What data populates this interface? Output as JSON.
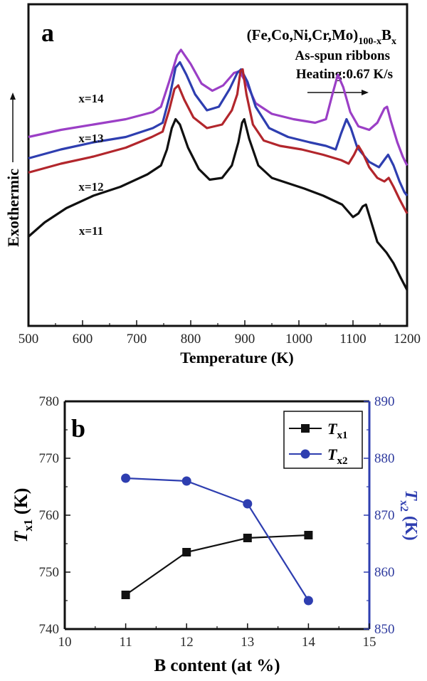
{
  "chart_data": [
    {
      "type": "line",
      "panel_label": "a",
      "xlabel": "Temperature (K)",
      "ylabel": "Exothermic",
      "xlim": [
        500,
        1200
      ],
      "x_ticks": [
        "500",
        "600",
        "700",
        "800",
        "900",
        "1000",
        "1100",
        "1200"
      ],
      "annotation": {
        "composition_main": "(Fe,Co,Ni,Cr,Mo)",
        "composition_sub": "100-x",
        "composition_end": "B",
        "composition_end_sub": "x",
        "line2": "As-spun ribbons",
        "line3": "Heating:0.67 K/s"
      },
      "series": [
        {
          "name": "x=14",
          "color": "#9b3fc6",
          "points": [
            [
              500,
              43
            ],
            [
              560,
              47
            ],
            [
              620,
              50
            ],
            [
              680,
              53
            ],
            [
              730,
              57
            ],
            [
              745,
              60
            ],
            [
              760,
              74
            ],
            [
              775,
              89
            ],
            [
              782,
              92
            ],
            [
              800,
              84
            ],
            [
              820,
              73
            ],
            [
              840,
              69
            ],
            [
              860,
              72
            ],
            [
              880,
              79
            ],
            [
              890,
              80
            ],
            [
              905,
              72
            ],
            [
              920,
              62
            ],
            [
              950,
              56
            ],
            [
              990,
              53
            ],
            [
              1030,
              51
            ],
            [
              1050,
              53
            ],
            [
              1062,
              67
            ],
            [
              1072,
              78
            ],
            [
              1082,
              71
            ],
            [
              1095,
              57
            ],
            [
              1110,
              49
            ],
            [
              1130,
              47
            ],
            [
              1145,
              51
            ],
            [
              1158,
              59
            ],
            [
              1163,
              60
            ],
            [
              1170,
              52
            ],
            [
              1182,
              40
            ],
            [
              1192,
              32
            ],
            [
              1200,
              27
            ]
          ]
        },
        {
          "name": "x=13",
          "color": "#2e3eb0",
          "points": [
            [
              500,
              31
            ],
            [
              560,
              36
            ],
            [
              620,
              40
            ],
            [
              680,
              43
            ],
            [
              730,
              48
            ],
            [
              748,
              51
            ],
            [
              762,
              67
            ],
            [
              772,
              82
            ],
            [
              780,
              85
            ],
            [
              792,
              78
            ],
            [
              808,
              67
            ],
            [
              830,
              58
            ],
            [
              852,
              60
            ],
            [
              872,
              70
            ],
            [
              886,
              79
            ],
            [
              893,
              81
            ],
            [
              905,
              74
            ],
            [
              920,
              60
            ],
            [
              945,
              48
            ],
            [
              980,
              43
            ],
            [
              1020,
              40
            ],
            [
              1050,
              38
            ],
            [
              1068,
              36
            ],
            [
              1078,
              45
            ],
            [
              1088,
              53
            ],
            [
              1096,
              48
            ],
            [
              1108,
              37
            ],
            [
              1130,
              29
            ],
            [
              1148,
              26
            ],
            [
              1160,
              31
            ],
            [
              1165,
              33
            ],
            [
              1175,
              27
            ],
            [
              1186,
              18
            ],
            [
              1195,
              12
            ],
            [
              1200,
              10
            ]
          ]
        },
        {
          "name": "x=12",
          "color": "#b2262c",
          "points": [
            [
              500,
              23
            ],
            [
              560,
              28
            ],
            [
              620,
              32
            ],
            [
              680,
              37
            ],
            [
              728,
              43
            ],
            [
              748,
              46
            ],
            [
              760,
              58
            ],
            [
              770,
              70
            ],
            [
              777,
              72
            ],
            [
              788,
              64
            ],
            [
              805,
              54
            ],
            [
              830,
              48
            ],
            [
              858,
              50
            ],
            [
              876,
              58
            ],
            [
              886,
              67
            ],
            [
              892,
              80
            ],
            [
              896,
              81
            ],
            [
              903,
              67
            ],
            [
              915,
              50
            ],
            [
              935,
              41
            ],
            [
              965,
              38
            ],
            [
              1005,
              36
            ],
            [
              1045,
              33
            ],
            [
              1078,
              30
            ],
            [
              1092,
              28
            ],
            [
              1102,
              33
            ],
            [
              1110,
              38
            ],
            [
              1118,
              34
            ],
            [
              1130,
              26
            ],
            [
              1145,
              20
            ],
            [
              1158,
              18
            ],
            [
              1166,
              20
            ],
            [
              1175,
              15
            ],
            [
              1186,
              8
            ],
            [
              1200,
              0
            ]
          ]
        },
        {
          "name": "x=11",
          "color": "#101010",
          "points": [
            [
              500,
              -13
            ],
            [
              530,
              -5
            ],
            [
              570,
              3
            ],
            [
              620,
              10
            ],
            [
              670,
              15
            ],
            [
              720,
              22
            ],
            [
              745,
              27
            ],
            [
              756,
              36
            ],
            [
              765,
              48
            ],
            [
              772,
              53
            ],
            [
              780,
              50
            ],
            [
              795,
              37
            ],
            [
              815,
              25
            ],
            [
              835,
              19
            ],
            [
              858,
              20
            ],
            [
              876,
              27
            ],
            [
              888,
              40
            ],
            [
              895,
              51
            ],
            [
              899,
              53
            ],
            [
              908,
              42
            ],
            [
              925,
              27
            ],
            [
              950,
              20
            ],
            [
              980,
              17
            ],
            [
              1010,
              14
            ],
            [
              1045,
              10
            ],
            [
              1080,
              5
            ],
            [
              1100,
              -2
            ],
            [
              1110,
              0
            ],
            [
              1118,
              4
            ],
            [
              1124,
              5
            ],
            [
              1132,
              -3
            ],
            [
              1145,
              -16
            ],
            [
              1162,
              -22
            ],
            [
              1175,
              -28
            ],
            [
              1188,
              -36
            ],
            [
              1200,
              -43
            ]
          ]
        }
      ]
    },
    {
      "type": "line",
      "panel_label": "b",
      "xlabel": "B content (at %)",
      "ylabel_left": "T",
      "ylabel_left_sub": "x1",
      "ylabel_left_unit": " (K)",
      "ylabel_right": "T",
      "ylabel_right_sub": "x2",
      "ylabel_right_unit": " (K)",
      "xlim": [
        10,
        15
      ],
      "ylim_left": [
        740,
        780
      ],
      "ylim_right": [
        850,
        890
      ],
      "x_ticks": [
        "10",
        "11",
        "12",
        "13",
        "14",
        "15"
      ],
      "y_ticks_left": [
        "740",
        "750",
        "760",
        "770",
        "780"
      ],
      "y_ticks_right": [
        "850",
        "860",
        "870",
        "880",
        "890"
      ],
      "categories": [
        11,
        12,
        13,
        14
      ],
      "series": [
        {
          "name": "T",
          "sub": "x1",
          "axis": "left",
          "color": "#111111",
          "marker": "square",
          "values": [
            746,
            753.5,
            756,
            756.5
          ]
        },
        {
          "name": "T",
          "sub": "x2",
          "axis": "right",
          "color": "#2e3eb0",
          "marker": "circle",
          "values": [
            876.5,
            876,
            872,
            855
          ]
        }
      ]
    }
  ]
}
